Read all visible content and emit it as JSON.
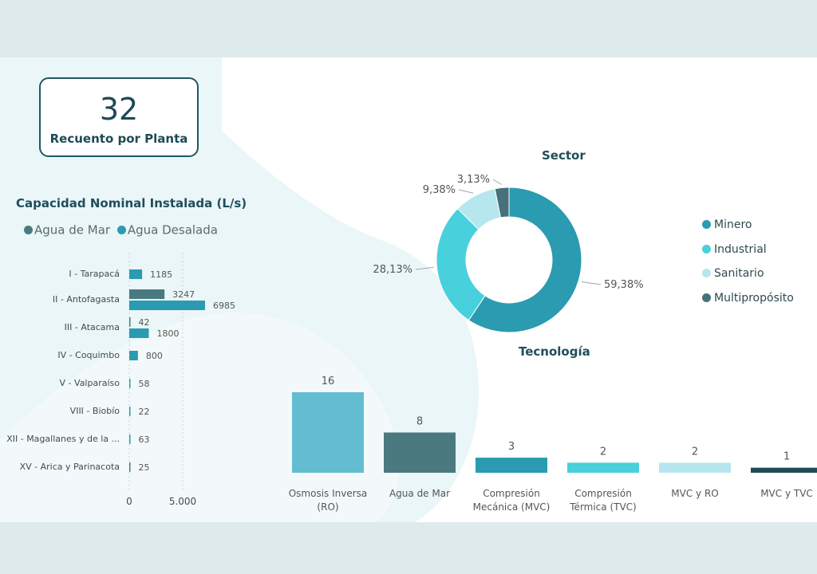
{
  "kpi": {
    "value": "32",
    "label": "Recuento por Planta"
  },
  "colors": {
    "agua_de_mar": "#4a7a80",
    "agua_desalada": "#2a9bb0",
    "minero": "#2a9bb0",
    "industrial": "#48d0dc",
    "sanitario": "#b6e6ee",
    "multiproposito": "#47707a"
  },
  "chart_data": [
    {
      "type": "bar",
      "orientation": "horizontal",
      "title": "Capacidad Nominal Instalada (L/s)",
      "categories": [
        "I - Tarapacá",
        "II - Antofagasta",
        "III - Atacama",
        "IV - Coquimbo",
        "V - Valparaíso",
        "VIII - Biobío",
        "XII - Magallanes y de la ...",
        "XV - Arica y Parinacota"
      ],
      "series": [
        {
          "name": "Agua de Mar",
          "values": [
            null,
            3247,
            42,
            null,
            null,
            null,
            null,
            25
          ]
        },
        {
          "name": "Agua Desalada",
          "values": [
            1185,
            6985,
            1800,
            800,
            58,
            22,
            63,
            null
          ]
        }
      ],
      "x_ticks": [
        "0",
        "5.000"
      ],
      "xlim": [
        0,
        8000
      ]
    },
    {
      "type": "pie",
      "title": "Sector",
      "labels": [
        "Minero",
        "Industrial",
        "Sanitario",
        "Multipropósito"
      ],
      "values": [
        59.38,
        28.13,
        9.38,
        3.13
      ],
      "value_labels": [
        "59,38%",
        "28,13%",
        "9,38%",
        "3,13%"
      ]
    },
    {
      "type": "bar",
      "title": "Tecnología",
      "categories": [
        "Osmosis Inversa (RO)",
        "Agua de Mar",
        "Compresión Mecánica (MVC)",
        "Compresión Térmica (TVC)",
        "MVC y RO",
        "MVC y TVC"
      ],
      "category_lines": [
        [
          "Osmosis Inversa",
          "(RO)"
        ],
        [
          "Agua de Mar"
        ],
        [
          "Compresión",
          "Mecánica (MVC)"
        ],
        [
          "Compresión",
          "Térmica (TVC)"
        ],
        [
          "MVC y RO"
        ],
        [
          "MVC y TVC"
        ]
      ],
      "values": [
        16,
        8,
        3,
        2,
        2,
        1
      ],
      "colors": [
        "#62bdd0",
        "#4a7a80",
        "#2a9bb0",
        "#48d0dc",
        "#b6e6ee",
        "#1d4a55"
      ]
    }
  ]
}
